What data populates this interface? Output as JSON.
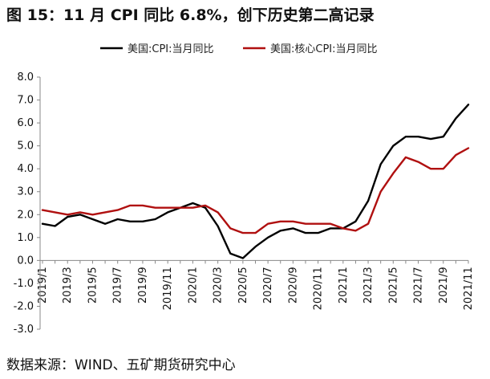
{
  "figure": {
    "title": "图 15：11 月 CPI 同比 6.8%，创下历史第二高记录",
    "source": "数据来源：WIND、五矿期货研究中心"
  },
  "chart_data": {
    "type": "line",
    "ylim": [
      -3.0,
      8.0
    ],
    "yticks": [
      "8.0",
      "7.0",
      "6.0",
      "5.0",
      "4.0",
      "3.0",
      "2.0",
      "1.0",
      "0.0",
      "-1.0",
      "-2.0",
      "-3.0"
    ],
    "x_tick_labels": [
      "2019/1",
      "2019/3",
      "2019/5",
      "2019/7",
      "2019/9",
      "2019/11",
      "2020/1",
      "2020/3",
      "2020/5",
      "2020/7",
      "2020/9",
      "2020/11",
      "2021/1",
      "2021/3",
      "2021/5",
      "2021/7",
      "2021/9",
      "2021/11"
    ],
    "x": [
      "2019/1",
      "2019/2",
      "2019/3",
      "2019/4",
      "2019/5",
      "2019/6",
      "2019/7",
      "2019/8",
      "2019/9",
      "2019/10",
      "2019/11",
      "2019/12",
      "2020/1",
      "2020/2",
      "2020/3",
      "2020/4",
      "2020/5",
      "2020/6",
      "2020/7",
      "2020/8",
      "2020/9",
      "2020/10",
      "2020/11",
      "2020/12",
      "2021/1",
      "2021/2",
      "2021/3",
      "2021/4",
      "2021/5",
      "2021/6",
      "2021/7",
      "2021/8",
      "2021/9",
      "2021/10",
      "2021/11"
    ],
    "legend_position": "top",
    "grid": false,
    "series": [
      {
        "name": "美国:CPI:当月同比",
        "color": "#000000",
        "values": [
          1.6,
          1.5,
          1.9,
          2.0,
          1.8,
          1.6,
          1.8,
          1.7,
          1.7,
          1.8,
          2.1,
          2.3,
          2.5,
          2.3,
          1.5,
          0.3,
          0.1,
          0.6,
          1.0,
          1.3,
          1.4,
          1.2,
          1.2,
          1.4,
          1.4,
          1.7,
          2.6,
          4.2,
          5.0,
          5.4,
          5.4,
          5.3,
          5.4,
          6.2,
          6.8
        ]
      },
      {
        "name": "美国:核心CPI:当月同比",
        "color": "#b01010",
        "values": [
          2.2,
          2.1,
          2.0,
          2.1,
          2.0,
          2.1,
          2.2,
          2.4,
          2.4,
          2.3,
          2.3,
          2.3,
          2.3,
          2.4,
          2.1,
          1.4,
          1.2,
          1.2,
          1.6,
          1.7,
          1.7,
          1.6,
          1.6,
          1.6,
          1.4,
          1.3,
          1.6,
          3.0,
          3.8,
          4.5,
          4.3,
          4.0,
          4.0,
          4.6,
          4.9
        ]
      }
    ]
  }
}
